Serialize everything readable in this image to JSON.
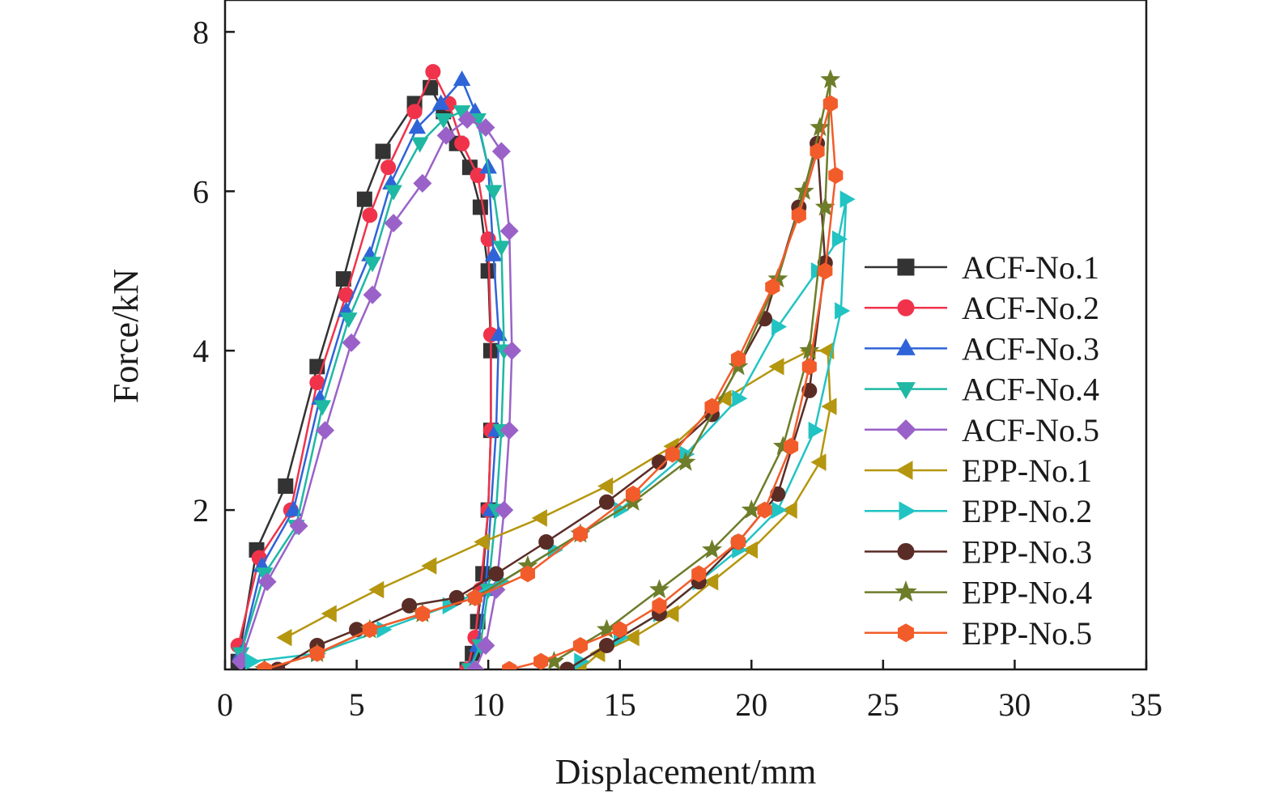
{
  "chart_data": {
    "type": "line",
    "title": "",
    "xlabel": "Displacement/mm",
    "ylabel": "Force/kN",
    "xlim": [
      0,
      35
    ],
    "ylim": [
      0,
      8.4
    ],
    "xticks": [
      0,
      5,
      10,
      15,
      20,
      25,
      30,
      35
    ],
    "xtick_labels": [
      "0",
      "5",
      "10",
      "15",
      "20",
      "25",
      "30",
      "35"
    ],
    "yticks": [
      2,
      4,
      6,
      8
    ],
    "ytick_labels": [
      "2",
      "4",
      "6",
      "8"
    ],
    "grid": false,
    "legend_position": "right",
    "series": [
      {
        "name": "ACF-No.1",
        "color": "#333333",
        "marker": "square",
        "x": [
          0.5,
          1.2,
          2.3,
          3.5,
          4.5,
          5.3,
          6.0,
          7.2,
          7.8,
          8.3,
          8.8,
          9.3,
          9.7,
          10.0,
          10.1,
          10.1,
          10.0,
          9.8,
          9.6,
          9.4,
          9.2
        ],
        "y": [
          0.1,
          1.5,
          2.3,
          3.8,
          4.9,
          5.9,
          6.5,
          7.1,
          7.3,
          7.0,
          6.6,
          6.3,
          5.8,
          5.0,
          4.0,
          3.0,
          2.0,
          1.2,
          0.6,
          0.2,
          0.0
        ]
      },
      {
        "name": "ACF-No.2",
        "color": "#f0334b",
        "marker": "circle",
        "x": [
          0.5,
          1.3,
          2.5,
          3.5,
          4.6,
          5.5,
          6.2,
          7.2,
          7.9,
          8.5,
          9.0,
          9.6,
          10.0,
          10.1,
          10.1,
          10.0,
          9.7,
          9.5,
          9.2
        ],
        "y": [
          0.3,
          1.4,
          2.0,
          3.6,
          4.7,
          5.7,
          6.3,
          7.0,
          7.5,
          7.1,
          6.6,
          6.2,
          5.4,
          4.2,
          3.0,
          2.0,
          1.0,
          0.4,
          0.0
        ]
      },
      {
        "name": "ACF-No.3",
        "color": "#2f64d8",
        "marker": "triangle-up",
        "x": [
          0.6,
          1.4,
          2.6,
          3.6,
          4.6,
          5.5,
          6.3,
          7.3,
          8.2,
          9.0,
          9.5,
          10.0,
          10.2,
          10.4,
          10.3,
          10.1,
          9.9,
          9.6,
          9.3
        ],
        "y": [
          0.2,
          1.3,
          2.0,
          3.4,
          4.5,
          5.2,
          6.1,
          6.8,
          7.1,
          7.4,
          7.0,
          6.3,
          5.2,
          4.2,
          3.0,
          2.0,
          1.0,
          0.3,
          0.0
        ]
      },
      {
        "name": "ACF-No.4",
        "color": "#1fb8a3",
        "marker": "triangle-down",
        "x": [
          0.6,
          1.5,
          2.7,
          3.7,
          4.7,
          5.6,
          6.4,
          7.4,
          8.3,
          9.0,
          9.6,
          10.2,
          10.5,
          10.6,
          10.5,
          10.3,
          10.0,
          9.7,
          9.3
        ],
        "y": [
          0.2,
          1.2,
          1.8,
          3.3,
          4.4,
          5.1,
          6.0,
          6.6,
          6.9,
          7.0,
          6.9,
          6.0,
          5.3,
          4.0,
          3.0,
          2.0,
          1.0,
          0.3,
          0.0
        ]
      },
      {
        "name": "ACF-No.5",
        "color": "#9a62c9",
        "marker": "diamond",
        "x": [
          0.6,
          1.6,
          2.8,
          3.8,
          4.8,
          5.6,
          6.4,
          7.5,
          8.4,
          9.2,
          9.9,
          10.5,
          10.8,
          10.9,
          10.8,
          10.6,
          10.3,
          9.9,
          9.5
        ],
        "y": [
          0.1,
          1.1,
          1.8,
          3.0,
          4.1,
          4.7,
          5.6,
          6.1,
          6.7,
          6.9,
          6.8,
          6.5,
          5.5,
          4.0,
          3.0,
          2.0,
          1.0,
          0.3,
          0.0
        ]
      },
      {
        "name": "EPP-No.1",
        "color": "#b5960f",
        "marker": "triangle-left",
        "x": [
          2.3,
          4.0,
          5.8,
          7.8,
          9.8,
          12.0,
          14.5,
          17.0,
          19.0,
          21.0,
          22.2,
          22.9,
          23.0,
          22.6,
          21.5,
          20.0,
          18.5,
          17.0,
          15.5,
          14.2,
          13.5
        ],
        "y": [
          0.4,
          0.7,
          1.0,
          1.3,
          1.6,
          1.9,
          2.3,
          2.8,
          3.4,
          3.8,
          4.0,
          4.0,
          3.3,
          2.6,
          2.0,
          1.5,
          1.1,
          0.7,
          0.4,
          0.2,
          0.0
        ]
      },
      {
        "name": "EPP-No.2",
        "color": "#22c3c3",
        "marker": "triangle-right",
        "x": [
          1.0,
          3.5,
          6.0,
          8.5,
          10.5,
          12.5,
          15.0,
          17.5,
          19.5,
          21.0,
          22.5,
          23.3,
          23.6,
          23.4,
          22.4,
          21.0,
          19.5,
          18.0,
          16.5,
          15.0,
          13.5
        ],
        "y": [
          0.1,
          0.2,
          0.5,
          0.8,
          1.1,
          1.5,
          2.0,
          2.7,
          3.4,
          4.3,
          5.0,
          5.4,
          5.9,
          4.5,
          3.0,
          2.0,
          1.5,
          1.1,
          0.7,
          0.4,
          0.1
        ]
      },
      {
        "name": "EPP-No.3",
        "color": "#5a2c26",
        "marker": "circle",
        "x": [
          2.0,
          3.5,
          5.0,
          7.0,
          8.8,
          10.3,
          12.2,
          14.5,
          16.5,
          18.5,
          20.5,
          21.8,
          22.5,
          22.8,
          22.2,
          21.0,
          19.5,
          18.0,
          16.5,
          14.5,
          13.0
        ],
        "y": [
          0.0,
          0.3,
          0.5,
          0.8,
          0.9,
          1.2,
          1.6,
          2.1,
          2.6,
          3.2,
          4.4,
          5.8,
          6.6,
          5.1,
          3.5,
          2.2,
          1.6,
          1.1,
          0.7,
          0.3,
          0.0
        ]
      },
      {
        "name": "EPP-No.4",
        "color": "#6d7d2a",
        "marker": "star",
        "x": [
          1.5,
          3.5,
          5.5,
          7.5,
          9.5,
          11.5,
          13.5,
          15.5,
          17.5,
          19.5,
          21.0,
          22.0,
          22.6,
          23.0,
          22.8,
          22.2,
          21.2,
          20.0,
          18.5,
          16.5,
          14.5,
          12.5
        ],
        "y": [
          0.0,
          0.2,
          0.5,
          0.7,
          0.9,
          1.3,
          1.7,
          2.1,
          2.6,
          3.8,
          4.9,
          6.0,
          6.8,
          7.4,
          5.8,
          4.0,
          2.8,
          2.0,
          1.5,
          1.0,
          0.5,
          0.1
        ]
      },
      {
        "name": "EPP-No.5",
        "color": "#f25c2a",
        "marker": "hexagon",
        "x": [
          1.5,
          3.5,
          5.5,
          7.5,
          9.5,
          11.5,
          13.5,
          15.5,
          17.0,
          18.5,
          19.5,
          20.8,
          21.8,
          22.5,
          23.0,
          23.2,
          22.8,
          22.2,
          21.5,
          20.5,
          19.5,
          18.0,
          16.5,
          15.0,
          13.5,
          12.0,
          10.8
        ],
        "y": [
          0.0,
          0.2,
          0.5,
          0.7,
          0.9,
          1.2,
          1.7,
          2.2,
          2.7,
          3.3,
          3.9,
          4.8,
          5.7,
          6.5,
          7.1,
          6.2,
          5.0,
          3.8,
          2.8,
          2.0,
          1.6,
          1.2,
          0.8,
          0.5,
          0.3,
          0.1,
          0.0
        ]
      }
    ]
  }
}
